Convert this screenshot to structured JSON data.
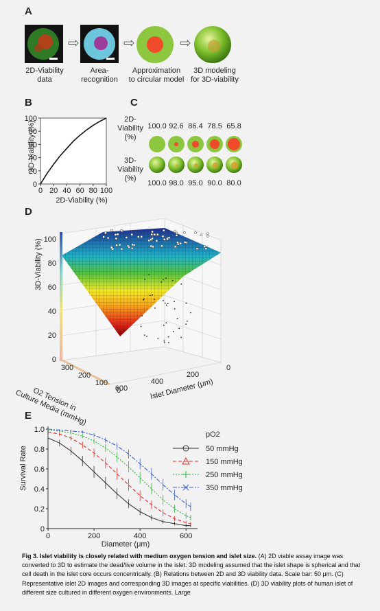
{
  "panelA": {
    "letter": "A",
    "steps": [
      "2D-Viability\ndata",
      "Area-\nrecognition",
      "Approximation\nto circular model",
      "3D modeling\nfor 3D-viability"
    ]
  },
  "panelB": {
    "letter": "B",
    "chart_data": {
      "type": "line",
      "xlabel": "2D-Viability (%)",
      "ylabel": "3D-Viability (%)",
      "xlim": [
        0,
        100
      ],
      "ylim": [
        0,
        100
      ],
      "xticks": [
        0,
        20,
        40,
        60,
        80,
        100
      ],
      "yticks": [
        0,
        20,
        40,
        60,
        80,
        100
      ],
      "x": [
        0,
        10,
        20,
        30,
        40,
        50,
        60,
        70,
        80,
        90,
        100
      ],
      "y": [
        0,
        16,
        30,
        43,
        54,
        65,
        74,
        82,
        89,
        95,
        100
      ]
    }
  },
  "panelC": {
    "letter": "C",
    "row1_label": "2D-\nViability\n(%)",
    "row2_label": "3D-\nViability\n(%)",
    "viab2d": [
      "100.0",
      "92.6",
      "86.4",
      "78.5",
      "65.8"
    ],
    "viab3d": [
      "100.0",
      "98.0",
      "95.0",
      "90.0",
      "80.0"
    ]
  },
  "panelD": {
    "letter": "D",
    "zlabel": "3D-Viability (%)",
    "zticks": [
      "0",
      "20",
      "40",
      "60",
      "80",
      "100"
    ],
    "o2_label": "O2 Tension in\nCulture Media (mmHg)",
    "o2_ticks": [
      "300",
      "200",
      "100",
      "0"
    ],
    "diam_label": "Islet Diameter (μm)",
    "diam_ticks": [
      "600",
      "400",
      "200",
      "0"
    ]
  },
  "panelE": {
    "letter": "E",
    "chart_data": {
      "type": "line",
      "xlabel": "Diameter (μm)",
      "ylabel": "Survival Rate",
      "xlim": [
        0,
        650
      ],
      "ylim": [
        0,
        1.0
      ],
      "xticks": [
        0,
        200,
        400,
        600
      ],
      "yticks": [
        0,
        0.2,
        0.4,
        0.6,
        0.8,
        1.0
      ],
      "legend_title": "pO2",
      "x": [
        0,
        50,
        100,
        150,
        200,
        250,
        300,
        350,
        400,
        450,
        500,
        550,
        600,
        620
      ],
      "series": [
        {
          "name": "50 mmHg",
          "color": "#333333",
          "values": [
            0.91,
            0.86,
            0.78,
            0.68,
            0.57,
            0.46,
            0.35,
            0.25,
            0.17,
            0.11,
            0.07,
            0.05,
            0.03,
            0.03
          ]
        },
        {
          "name": "150 mmHg",
          "color": "#e03030",
          "values": [
            0.97,
            0.95,
            0.91,
            0.84,
            0.76,
            0.66,
            0.55,
            0.44,
            0.33,
            0.24,
            0.16,
            0.1,
            0.06,
            0.05
          ]
        },
        {
          "name": "250 mmHg",
          "color": "#2fae3f",
          "values": [
            0.99,
            0.98,
            0.96,
            0.93,
            0.88,
            0.81,
            0.72,
            0.62,
            0.51,
            0.4,
            0.29,
            0.2,
            0.13,
            0.11
          ]
        },
        {
          "name": "350 mmHg",
          "color": "#3a5fc9",
          "values": [
            1.0,
            0.99,
            0.98,
            0.97,
            0.94,
            0.89,
            0.83,
            0.75,
            0.65,
            0.55,
            0.44,
            0.34,
            0.25,
            0.22
          ]
        }
      ]
    }
  },
  "caption": {
    "bold": "Fig 3. Islet viability is closely related with medium oxygen tension and islet size.",
    "text": " (A) 2D viable assay image was converted to 3D to estimate the dead/live volume in the islet. 3D modeling assumed that the islet shape is spherical and that cell death in the islet core occurs concentrically. (B) Relations between 2D and 3D viability data. Scale bar: 50 μm. (C) Representative islet 2D images and corresponding 3D images at specific viabilities. (D) 3D viability plots of human islet of different size cultured in different oxygen environments. Large"
  }
}
